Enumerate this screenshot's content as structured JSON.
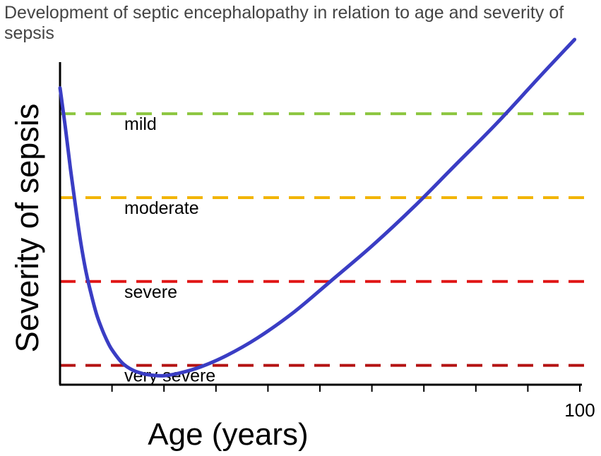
{
  "chart_data": {
    "type": "line",
    "title": "Development of septic encephalopathy in relation to age and severity of sepsis",
    "xlabel": "Age (years)",
    "ylabel": "Severity of sepsis",
    "xlim": [
      0,
      100
    ],
    "ylim": [
      0,
      100
    ],
    "x_tick_count": 10,
    "x_tick_labels": [
      {
        "value": 100,
        "label": "100"
      }
    ],
    "y_axis_reversed": true,
    "grid": false,
    "reference_lines": [
      {
        "label": "mild",
        "y": 84,
        "color": "#8CC63F"
      },
      {
        "label": "moderate",
        "y": 58,
        "color": "#F2B400"
      },
      {
        "label": "severe",
        "y": 32,
        "color": "#E01515"
      },
      {
        "label": "very severe",
        "y": 6,
        "color": "#B41212"
      }
    ],
    "series": [
      {
        "color": "#3A3DC4",
        "points": [
          [
            0,
            92
          ],
          [
            1,
            80
          ],
          [
            2,
            67
          ],
          [
            3,
            55
          ],
          [
            4,
            44
          ],
          [
            5,
            35
          ],
          [
            6,
            28
          ],
          [
            7,
            22
          ],
          [
            8,
            17.5
          ],
          [
            9,
            13.8
          ],
          [
            10,
            10.8
          ],
          [
            12,
            6.7
          ],
          [
            14,
            4.5
          ],
          [
            16,
            3.4
          ],
          [
            18,
            2.9
          ],
          [
            20,
            2.8
          ],
          [
            23,
            3.6
          ],
          [
            27,
            5.5
          ],
          [
            32,
            9
          ],
          [
            38,
            14.5
          ],
          [
            45,
            22.5
          ],
          [
            52,
            32
          ],
          [
            60,
            43
          ],
          [
            68,
            55
          ],
          [
            76,
            68
          ],
          [
            84,
            81
          ],
          [
            92,
            95
          ],
          [
            99,
            107
          ]
        ]
      }
    ]
  }
}
